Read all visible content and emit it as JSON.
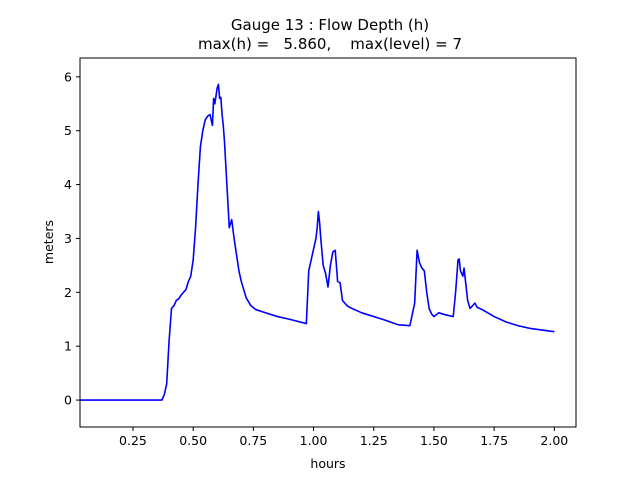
{
  "chart_data": {
    "type": "line",
    "title_line1": "Gauge 13 : Flow Depth (h)",
    "title_line2": "max(h) =   5.860,    max(level) = 7",
    "xlabel": "hours",
    "ylabel": "meters",
    "xlim": [
      0.03,
      2.09
    ],
    "ylim": [
      -0.5,
      6.35
    ],
    "xticks": [
      0.25,
      0.5,
      0.75,
      1.0,
      1.25,
      1.5,
      1.75,
      2.0
    ],
    "xtick_labels": [
      "0.25",
      "0.50",
      "0.75",
      "1.00",
      "1.25",
      "1.50",
      "1.75",
      "2.00"
    ],
    "yticks": [
      0,
      1,
      2,
      3,
      4,
      5,
      6
    ],
    "ytick_labels": [
      "0",
      "1",
      "2",
      "3",
      "4",
      "5",
      "6"
    ],
    "grid": false,
    "series": [
      {
        "color": "#0000ff",
        "x": [
          0.03,
          0.37,
          0.38,
          0.39,
          0.4,
          0.41,
          0.42,
          0.43,
          0.44,
          0.45,
          0.46,
          0.47,
          0.48,
          0.49,
          0.5,
          0.51,
          0.52,
          0.53,
          0.54,
          0.55,
          0.56,
          0.57,
          0.58,
          0.585,
          0.59,
          0.6,
          0.605,
          0.61,
          0.615,
          0.62,
          0.625,
          0.63,
          0.64,
          0.65,
          0.66,
          0.67,
          0.68,
          0.69,
          0.7,
          0.72,
          0.74,
          0.76,
          0.8,
          0.85,
          0.9,
          0.97,
          0.98,
          0.99,
          1.0,
          1.01,
          1.015,
          1.02,
          1.025,
          1.03,
          1.04,
          1.05,
          1.06,
          1.07,
          1.08,
          1.09,
          1.1,
          1.11,
          1.12,
          1.13,
          1.14,
          1.15,
          1.17,
          1.2,
          1.25,
          1.3,
          1.35,
          1.4,
          1.42,
          1.43,
          1.44,
          1.45,
          1.46,
          1.47,
          1.48,
          1.49,
          1.5,
          1.52,
          1.55,
          1.58,
          1.59,
          1.6,
          1.605,
          1.61,
          1.62,
          1.625,
          1.63,
          1.64,
          1.65,
          1.66,
          1.67,
          1.68,
          1.7,
          1.75,
          1.8,
          1.85,
          1.9,
          1.95,
          2.0
        ],
        "y": [
          0.0,
          0.0,
          0.1,
          0.3,
          1.1,
          1.7,
          1.75,
          1.85,
          1.88,
          1.95,
          2.0,
          2.05,
          2.2,
          2.3,
          2.6,
          3.2,
          4.0,
          4.7,
          5.0,
          5.2,
          5.27,
          5.3,
          5.1,
          5.6,
          5.5,
          5.8,
          5.86,
          5.6,
          5.62,
          5.3,
          5.1,
          4.8,
          4.0,
          3.2,
          3.35,
          3.0,
          2.7,
          2.4,
          2.2,
          1.9,
          1.75,
          1.68,
          1.62,
          1.55,
          1.5,
          1.42,
          2.4,
          2.6,
          2.8,
          3.0,
          3.2,
          3.5,
          3.3,
          3.0,
          2.5,
          2.35,
          2.1,
          2.5,
          2.75,
          2.78,
          2.2,
          2.18,
          1.85,
          1.8,
          1.75,
          1.72,
          1.68,
          1.62,
          1.55,
          1.48,
          1.4,
          1.38,
          1.8,
          2.78,
          2.55,
          2.45,
          2.4,
          2.0,
          1.7,
          1.6,
          1.55,
          1.62,
          1.58,
          1.55,
          2.0,
          2.6,
          2.62,
          2.4,
          2.3,
          2.45,
          2.25,
          1.85,
          1.7,
          1.75,
          1.8,
          1.72,
          1.68,
          1.55,
          1.45,
          1.38,
          1.33,
          1.3,
          1.27
        ]
      }
    ]
  }
}
